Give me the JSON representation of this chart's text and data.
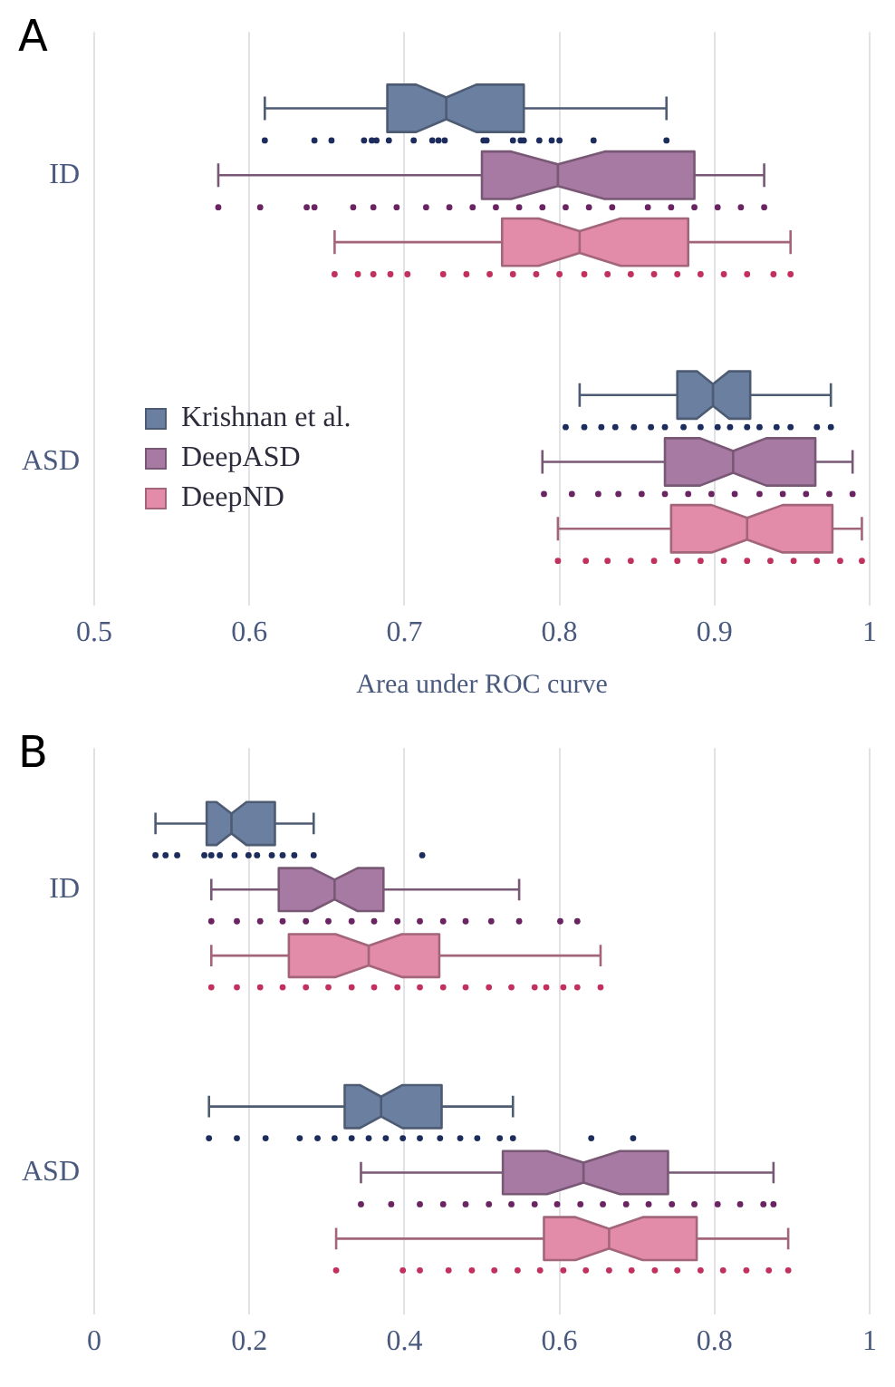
{
  "chart_data": [
    {
      "type": "box",
      "title": "A",
      "orientation": "horizontal",
      "categories": [
        "ID",
        "ASD"
      ],
      "xlabel": "Area under ROC curve",
      "xlim": [
        0.5,
        1
      ],
      "xticks": [
        0.5,
        0.6,
        0.7,
        0.8,
        0.9,
        1
      ],
      "grid": "x",
      "legend": "left",
      "series": [
        {
          "name": "Krishnan et al.",
          "color": "#6b7fa0",
          "boxes": [
            {
              "low": 0.61,
              "q1": 0.689,
              "median": 0.727,
              "q3": 0.777,
              "high": 0.869
            },
            {
              "low": 0.813,
              "q1": 0.876,
              "median": 0.899,
              "q3": 0.923,
              "high": 0.975
            }
          ]
        },
        {
          "name": "DeepASD",
          "color": "#a77aa3",
          "boxes": [
            {
              "low": 0.58,
              "q1": 0.75,
              "median": 0.799,
              "q3": 0.887,
              "high": 0.932
            },
            {
              "low": 0.789,
              "q1": 0.868,
              "median": 0.912,
              "q3": 0.965,
              "high": 0.989
            }
          ]
        },
        {
          "name": "DeepND",
          "color": "#e28ca9",
          "boxes": [
            {
              "low": 0.655,
              "q1": 0.763,
              "median": 0.813,
              "q3": 0.883,
              "high": 0.949
            },
            {
              "low": 0.799,
              "q1": 0.872,
              "median": 0.921,
              "q3": 0.976,
              "high": 0.995
            }
          ]
        },
        {
          "type": "scatter",
          "color": "#1c2c5c",
          "x": [
            "ID",
            "ID",
            "ID",
            "ID",
            "ID",
            "ID",
            "ID",
            "ID",
            "ID",
            "ID",
            "ID",
            "ID",
            "ID",
            "ID",
            "ID",
            "ID",
            "ID",
            "ID",
            "ID",
            "ID",
            "ID",
            "ASD",
            "ASD",
            "ASD",
            "ASD",
            "ASD",
            "ASD",
            "ASD",
            "ASD",
            "ASD",
            "ASD",
            "ASD",
            "ASD",
            "ASD",
            "ASD",
            "ASD",
            "ASD",
            "ASD"
          ],
          "values": [
            0.61,
            0.642,
            0.653,
            0.674,
            0.679,
            0.682,
            0.69,
            0.706,
            0.718,
            0.722,
            0.726,
            0.751,
            0.753,
            0.77,
            0.775,
            0.777,
            0.787,
            0.795,
            0.8,
            0.822,
            0.869,
            0.804,
            0.816,
            0.827,
            0.836,
            0.848,
            0.859,
            0.868,
            0.88,
            0.891,
            0.902,
            0.91,
            0.921,
            0.929,
            0.94,
            0.949,
            0.966,
            0.975
          ]
        },
        {
          "type": "scatter",
          "color": "#6a2462",
          "x": [
            "ID",
            "ID",
            "ID",
            "ID",
            "ID",
            "ID",
            "ID",
            "ID",
            "ID",
            "ID",
            "ID",
            "ID",
            "ID",
            "ID",
            "ID",
            "ID",
            "ID",
            "ID",
            "ID",
            "ID",
            "ID",
            "ID",
            "ASD",
            "ASD",
            "ASD",
            "ASD",
            "ASD",
            "ASD",
            "ASD",
            "ASD",
            "ASD",
            "ASD",
            "ASD",
            "ASD",
            "ASD",
            "ASD"
          ],
          "values": [
            0.58,
            0.607,
            0.637,
            0.642,
            0.667,
            0.68,
            0.695,
            0.714,
            0.729,
            0.744,
            0.759,
            0.774,
            0.789,
            0.804,
            0.819,
            0.834,
            0.857,
            0.872,
            0.887,
            0.902,
            0.917,
            0.932,
            0.79,
            0.808,
            0.825,
            0.838,
            0.853,
            0.868,
            0.883,
            0.898,
            0.913,
            0.929,
            0.944,
            0.959,
            0.974,
            0.989
          ]
        },
        {
          "type": "scatter",
          "color": "#c2305e",
          "x": [
            "ID",
            "ID",
            "ID",
            "ID",
            "ID",
            "ID",
            "ID",
            "ID",
            "ID",
            "ID",
            "ID",
            "ID",
            "ID",
            "ID",
            "ID",
            "ID",
            "ID",
            "ID",
            "ID",
            "ID",
            "ID",
            "ASD",
            "ASD",
            "ASD",
            "ASD",
            "ASD",
            "ASD",
            "ASD",
            "ASD",
            "ASD",
            "ASD",
            "ASD",
            "ASD",
            "ASD",
            "ASD"
          ],
          "values": [
            0.655,
            0.67,
            0.68,
            0.691,
            0.702,
            0.725,
            0.74,
            0.755,
            0.77,
            0.785,
            0.8,
            0.816,
            0.831,
            0.846,
            0.861,
            0.876,
            0.891,
            0.906,
            0.921,
            0.938,
            0.949,
            0.799,
            0.817,
            0.831,
            0.846,
            0.861,
            0.876,
            0.891,
            0.906,
            0.921,
            0.936,
            0.951,
            0.966,
            0.981,
            0.995
          ]
        }
      ]
    },
    {
      "type": "box",
      "title": "B",
      "orientation": "horizontal",
      "categories": [
        "ID",
        "ASD"
      ],
      "xlim": [
        0,
        1
      ],
      "xticks": [
        0,
        0.2,
        0.4,
        0.6,
        0.8,
        1
      ],
      "grid": "x",
      "series": [
        {
          "color": "#6b7fa0",
          "boxes": [
            {
              "low": 0.079,
              "q1": 0.145,
              "median": 0.177,
              "q3": 0.233,
              "high": 0.283
            },
            {
              "low": 0.148,
              "q1": 0.323,
              "median": 0.37,
              "q3": 0.448,
              "high": 0.54
            }
          ]
        },
        {
          "color": "#a77aa3",
          "boxes": [
            {
              "low": 0.151,
              "q1": 0.238,
              "median": 0.31,
              "q3": 0.373,
              "high": 0.548
            },
            {
              "low": 0.344,
              "q1": 0.527,
              "median": 0.631,
              "q3": 0.74,
              "high": 0.876
            }
          ]
        },
        {
          "color": "#e28ca9",
          "boxes": [
            {
              "low": 0.151,
              "q1": 0.251,
              "median": 0.354,
              "q3": 0.445,
              "high": 0.653
            },
            {
              "low": 0.312,
              "q1": 0.58,
              "median": 0.664,
              "q3": 0.777,
              "high": 0.895
            }
          ]
        },
        {
          "type": "scatter",
          "color": "#1c2c5c",
          "x": [
            "ID",
            "ID",
            "ID",
            "ID",
            "ID",
            "ID",
            "ID",
            "ID",
            "ID",
            "ID",
            "ID",
            "ID",
            "ID",
            "ID",
            "ASD",
            "ASD",
            "ASD",
            "ASD",
            "ASD",
            "ASD",
            "ASD",
            "ASD",
            "ASD",
            "ASD",
            "ASD",
            "ASD",
            "ASD",
            "ASD",
            "ASD",
            "ASD",
            "ASD",
            "ASD"
          ],
          "values": [
            0.079,
            0.092,
            0.107,
            0.142,
            0.151,
            0.162,
            0.181,
            0.199,
            0.21,
            0.229,
            0.243,
            0.258,
            0.283,
            0.423,
            0.148,
            0.184,
            0.221,
            0.265,
            0.288,
            0.31,
            0.332,
            0.354,
            0.376,
            0.398,
            0.42,
            0.446,
            0.472,
            0.494,
            0.523,
            0.54,
            0.641,
            0.695
          ]
        },
        {
          "type": "scatter",
          "color": "#6a2462",
          "x": [
            "ID",
            "ID",
            "ID",
            "ID",
            "ID",
            "ID",
            "ID",
            "ID",
            "ID",
            "ID",
            "ID",
            "ID",
            "ID",
            "ID",
            "ID",
            "ID",
            "ASD",
            "ASD",
            "ASD",
            "ASD",
            "ASD",
            "ASD",
            "ASD",
            "ASD",
            "ASD",
            "ASD",
            "ASD",
            "ASD",
            "ASD",
            "ASD",
            "ASD",
            "ASD",
            "ASD",
            "ASD",
            "ASD"
          ],
          "values": [
            0.151,
            0.184,
            0.214,
            0.243,
            0.273,
            0.302,
            0.332,
            0.361,
            0.391,
            0.42,
            0.45,
            0.479,
            0.512,
            0.548,
            0.601,
            0.623,
            0.344,
            0.383,
            0.42,
            0.45,
            0.479,
            0.509,
            0.538,
            0.568,
            0.597,
            0.627,
            0.656,
            0.686,
            0.715,
            0.745,
            0.774,
            0.804,
            0.833,
            0.863,
            0.876
          ]
        },
        {
          "type": "scatter",
          "color": "#c2305e",
          "x": [
            "ID",
            "ID",
            "ID",
            "ID",
            "ID",
            "ID",
            "ID",
            "ID",
            "ID",
            "ID",
            "ID",
            "ID",
            "ID",
            "ID",
            "ID",
            "ID",
            "ID",
            "ID",
            "ID",
            "ASD",
            "ASD",
            "ASD",
            "ASD",
            "ASD",
            "ASD",
            "ASD",
            "ASD",
            "ASD",
            "ASD",
            "ASD",
            "ASD",
            "ASD",
            "ASD",
            "ASD",
            "ASD",
            "ASD",
            "ASD",
            "ASD"
          ],
          "values": [
            0.151,
            0.184,
            0.214,
            0.243,
            0.273,
            0.302,
            0.332,
            0.361,
            0.391,
            0.42,
            0.45,
            0.479,
            0.509,
            0.538,
            0.568,
            0.583,
            0.605,
            0.623,
            0.653,
            0.312,
            0.398,
            0.42,
            0.457,
            0.487,
            0.516,
            0.546,
            0.575,
            0.605,
            0.634,
            0.664,
            0.693,
            0.723,
            0.752,
            0.782,
            0.811,
            0.841,
            0.87,
            0.895
          ]
        }
      ]
    }
  ]
}
